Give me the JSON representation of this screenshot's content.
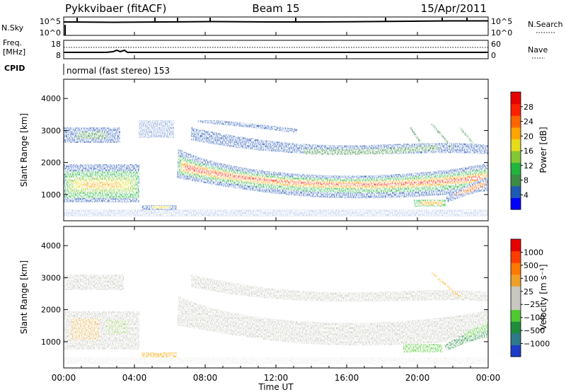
{
  "header": {
    "station": "Pykkvibaer (fitACF)",
    "beam": "Beam 15",
    "date": "15/Apr/2011"
  },
  "panels": {
    "nsky": {
      "left_label": "N.Sky",
      "left_ticks": [
        "10^5",
        "10^0"
      ],
      "right_ticks": [
        "10^5",
        "10^0"
      ],
      "right_label": "N.Search"
    },
    "freq": {
      "left_label_1": "Freq.",
      "left_label_2": "[MHz]",
      "left_ticks": [
        "18",
        "8"
      ],
      "right_ticks": [
        "60",
        "0"
      ],
      "right_label": "Nave"
    },
    "cpid": {
      "label": "CPID",
      "text": "normal (fast stereo) 153"
    }
  },
  "chart_data": [
    {
      "type": "heatmap",
      "name": "power",
      "ylabel": "Slant Range [km]",
      "yticks": [
        "4000",
        "3000",
        "2000",
        "1000"
      ],
      "ylim": [
        180,
        4600
      ],
      "xlim_hours": [
        0,
        24
      ],
      "colorbar": {
        "label": "Power [dB]",
        "ticks": [
          "28",
          "24",
          "20",
          "16",
          "12",
          "8",
          "4"
        ],
        "colors": [
          "#0000ff",
          "#1e5ab4",
          "#3c8c46",
          "#22b43c",
          "#82c832",
          "#e6dc1e",
          "#ffa500",
          "#ff6400",
          "#ff2000",
          "#e60000"
        ]
      }
    },
    {
      "type": "heatmap",
      "name": "velocity",
      "ylabel": "Slant Range [km]",
      "yticks": [
        "4000",
        "3000",
        "2000",
        "1000"
      ],
      "ylim": [
        180,
        4600
      ],
      "xlim_hours": [
        0,
        24
      ],
      "colorbar": {
        "label": "Velocity [m s⁻¹]",
        "ticks": [
          "1000",
          "500",
          "100",
          "25",
          "−25",
          "−100",
          "−500",
          "−1000"
        ],
        "colors": [
          "#1e3cc8",
          "#2e7a8a",
          "#1e8c3c",
          "#50c832",
          "#c8c8c0",
          "#c8c8c0",
          "#f0a028",
          "#ff7800",
          "#ff3c00",
          "#e60000"
        ]
      }
    }
  ],
  "xaxis": {
    "ticks": [
      "00:00",
      "04:00",
      "08:00",
      "12:00",
      "16:00",
      "20:00",
      "00:00"
    ],
    "label": "Time UT"
  }
}
